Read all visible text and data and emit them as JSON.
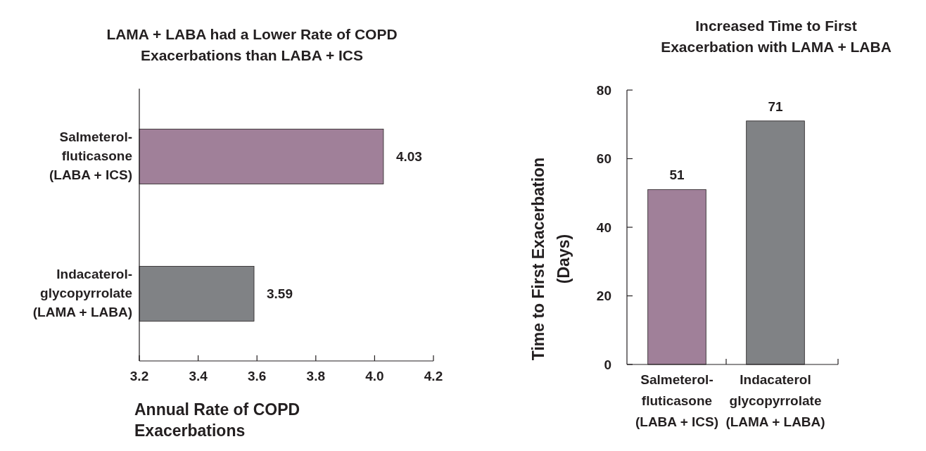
{
  "chart_data": [
    {
      "type": "bar",
      "orientation": "horizontal",
      "title": "LAMA + LABA had a Lower Rate of COPD\nExacerbations than LABA + ICS",
      "xlabel": "Annual Rate of COPD\nExacerbations",
      "categories": [
        "Salmeterol-\nfluticasone\n(LABA + ICS)",
        "Indacaterol-\nglycopyrrolate\n(LAMA + LABA)"
      ],
      "values": [
        4.03,
        3.59
      ],
      "colors": [
        "#a08099",
        "#808285"
      ],
      "xlim": [
        3.2,
        4.2
      ],
      "xticks": [
        3.2,
        3.4,
        3.6,
        3.8,
        {
          "value": 4,
          "label": "4.0"
        },
        4.2
      ],
      "data_labels": true,
      "grid": false,
      "legend": false
    },
    {
      "type": "bar",
      "title": "Increased Time to First\nExacerbation with LAMA + LABA",
      "ylabel": "Time to First Exacerbation\n(Days)",
      "categories": [
        "Salmeterol-\nfluticasone\n(LABA + ICS)",
        "Indacaterol\nglycopyrrolate\n(LAMA + LABA)"
      ],
      "values": [
        51,
        71
      ],
      "colors": [
        "#a08099",
        "#808285"
      ],
      "ylim": [
        0,
        80
      ],
      "yticks": [
        0,
        20,
        40,
        60,
        80
      ],
      "data_labels": true,
      "grid": false,
      "legend": false
    }
  ]
}
